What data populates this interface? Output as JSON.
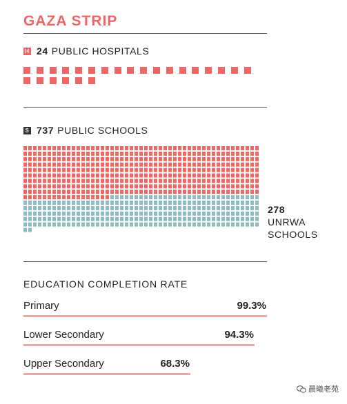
{
  "title": "GAZA STRIP",
  "colors": {
    "accent": "#ee6767",
    "hospital": "#ee6767",
    "public_school": "#ee6767",
    "unrwa_school": "#8fbcc4",
    "bar": "#f1a5a5",
    "badge_dark": "#333333"
  },
  "hospitals": {
    "badge": "H",
    "count": "24",
    "label": "PUBLIC HOSPITALS"
  },
  "schools": {
    "badge": "S",
    "count": "737",
    "label": "PUBLIC SCHOOLS"
  },
  "unrwa": {
    "count": "278",
    "line1": "UNRWA",
    "line2": "SCHOOLS"
  },
  "education": {
    "title": "EDUCATION COMPLETION RATE",
    "rows": [
      {
        "label": "Primary",
        "value_text": "99.3%"
      },
      {
        "label": "Lower Secondary",
        "value_text": "94.3%"
      },
      {
        "label": "Upper Secondary",
        "value_text": "68.3%"
      }
    ]
  },
  "chart_data": [
    {
      "type": "bar",
      "title": "",
      "series": [
        {
          "name": "PUBLIC HOSPITALS",
          "values": [
            24
          ]
        }
      ]
    },
    {
      "type": "bar",
      "title": "",
      "series": [
        {
          "name": "PUBLIC SCHOOLS",
          "values": [
            737
          ]
        },
        {
          "name": "UNRWA SCHOOLS",
          "values": [
            278
          ]
        }
      ]
    },
    {
      "type": "bar",
      "title": "EDUCATION COMPLETION RATE",
      "categories": [
        "Primary",
        "Lower Secondary",
        "Upper Secondary"
      ],
      "values": [
        99.3,
        94.3,
        68.3
      ],
      "xlabel": "",
      "ylabel": "",
      "ylim": [
        0,
        100
      ]
    }
  ],
  "watermark": "晨曦老苑"
}
